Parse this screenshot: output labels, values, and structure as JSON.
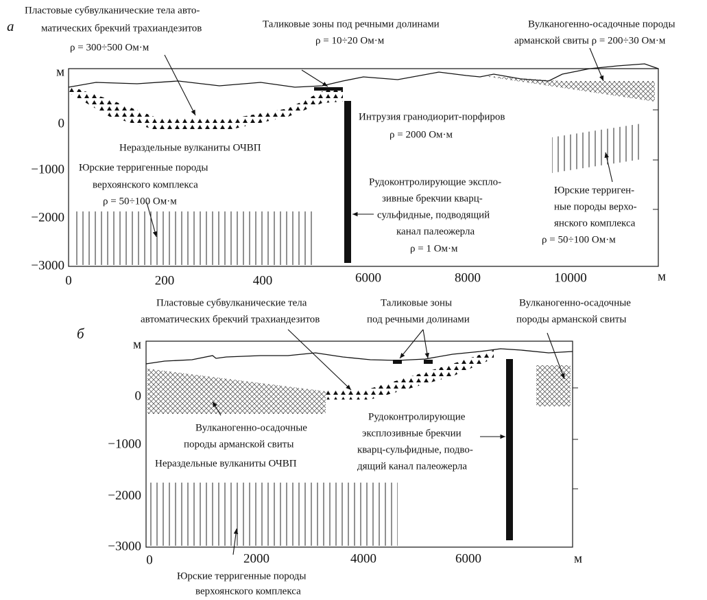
{
  "panel_a": {
    "label": "а",
    "annotations": [
      {
        "lines": [
          "Пластовые субвулканические тела авто-",
          "матических брекчий трахиандезитов",
          "ρ = 300÷500 Ом·м"
        ]
      },
      {
        "lines": [
          "Таликовые зоны под речными долинами",
          "ρ = 10÷20 Ом·м"
        ]
      },
      {
        "lines": [
          "Вулканогенно-осадочные породы",
          "арманской свиты ρ = 200÷30 Ом·м"
        ]
      },
      {
        "lines": [
          "Интрузия гранодиорит-порфиров",
          "ρ = 2000 Ом·м"
        ]
      },
      {
        "lines": [
          "Нераздельные вулканиты ОЧВП"
        ]
      },
      {
        "lines": [
          "Юрские терригенные породы",
          "верхоянского комплекса",
          "ρ = 50÷100 Ом·м"
        ]
      },
      {
        "lines": [
          "Рудоконтролирующие эксплo-",
          "зивные брекчии кварц-",
          "сульфидные, подводящий",
          "канал палеожерла",
          "ρ = 1 Ом·м"
        ]
      },
      {
        "lines": [
          "Юрские терриген-",
          "ные породы верхо-",
          "янского комплекса",
          "ρ = 50÷100 Ом·м"
        ]
      }
    ],
    "y_ticks": [
      "м",
      "0",
      "−1000",
      "−2000",
      "−3000"
    ],
    "x_ticks": [
      "0",
      "200",
      "400",
      "6000",
      "8000",
      "10000",
      "м"
    ]
  },
  "panel_b": {
    "label": "б",
    "annotations": [
      {
        "lines": [
          "Пластовые субвулканические тела",
          "автоматических брекчий трахиандезитов"
        ]
      },
      {
        "lines": [
          "Таликовые зоны",
          "под речными долинами"
        ]
      },
      {
        "lines": [
          "Вулканогенно-осадочные",
          "породы арманской свиты"
        ]
      },
      {
        "lines": [
          "Вулканогенно-осадочные",
          "породы арманской свиты"
        ]
      },
      {
        "lines": [
          "Рудоконтролирующие",
          "эксплозивные брекчии",
          "кварц-сульфидные, подво-",
          "дящий канал палеожерла"
        ]
      },
      {
        "lines": [
          "Нераздельные вулканиты ОЧВП"
        ]
      },
      {
        "lines": [
          "Юрские терригенные породы",
          "верхоянского комплекса"
        ]
      }
    ],
    "y_ticks": [
      "м",
      "0",
      "−1000",
      "−2000",
      "−3000"
    ],
    "x_ticks": [
      "0",
      "2000",
      "4000",
      "6000",
      "м"
    ]
  }
}
